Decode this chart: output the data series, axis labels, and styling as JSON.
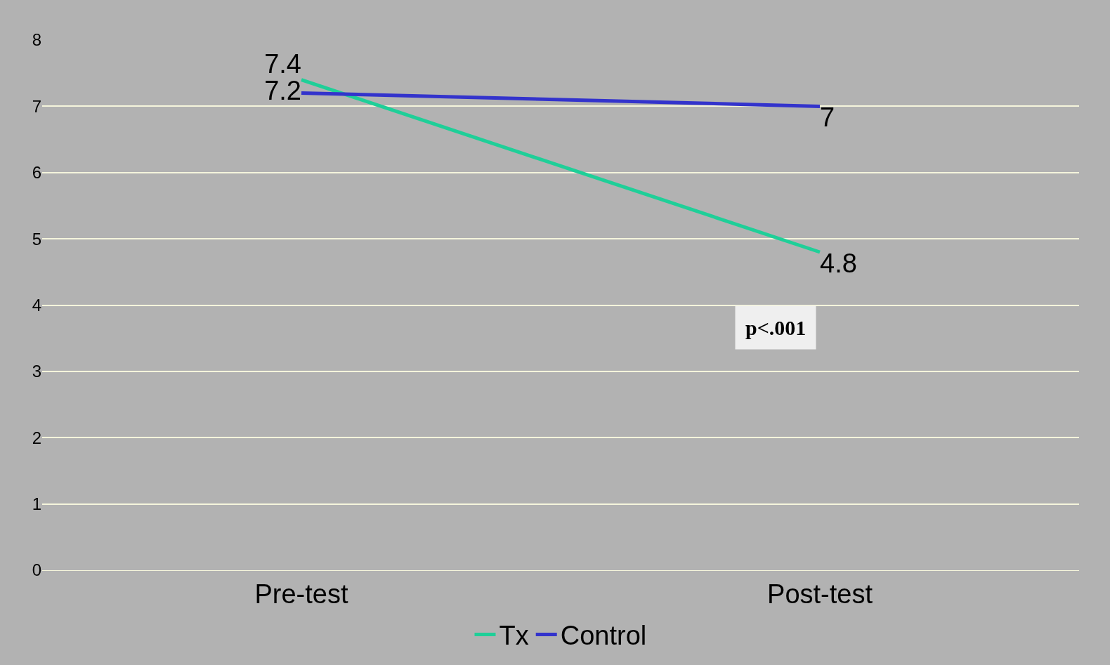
{
  "chart_data": {
    "type": "line",
    "categories": [
      "Pre-test",
      "Post-test"
    ],
    "series": [
      {
        "name": "Tx",
        "color": "#1fcf98",
        "values": [
          7.4,
          4.8
        ]
      },
      {
        "name": "Control",
        "color": "#3333cc",
        "values": [
          7.2,
          7
        ]
      }
    ],
    "ylim": [
      0,
      8
    ],
    "yticks": [
      0,
      1,
      2,
      3,
      4,
      5,
      6,
      7,
      8
    ],
    "grid": "y",
    "legend": "bottom",
    "data_labels": true,
    "marker": "none",
    "annotations": [
      "p<.001"
    ]
  }
}
